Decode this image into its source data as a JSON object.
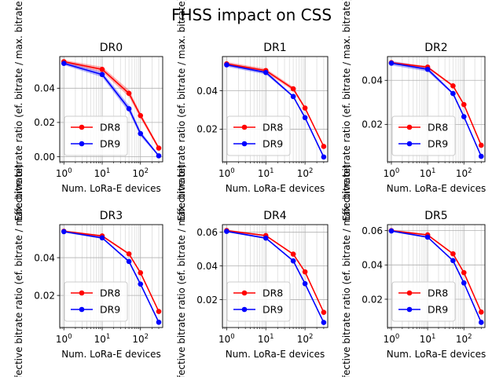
{
  "figure": {
    "title": "FHSS impact on CSS"
  },
  "chart_data": [
    {
      "type": "line",
      "title": "DR0",
      "xlabel": "Num. LoRa-E devices",
      "ylabel": "Effective bitrate ratio (ef. bitrate / max. bitrate)",
      "xscale": "log",
      "xlim": [
        0.78,
        380
      ],
      "ylim": [
        -0.003,
        0.0585
      ],
      "xticks": [
        {
          "v": 1,
          "b": "10",
          "e": "0"
        },
        {
          "v": 10,
          "b": "10",
          "e": "1"
        },
        {
          "v": 100,
          "b": "10",
          "e": "2"
        }
      ],
      "yticks": [
        {
          "v": 0.0,
          "l": "0.00"
        },
        {
          "v": 0.02,
          "l": "0.02"
        },
        {
          "v": 0.04,
          "l": "0.04"
        }
      ],
      "grid": true,
      "legend": "lower-left",
      "x": [
        1,
        10,
        50,
        100,
        300
      ],
      "series": [
        {
          "name": "DR8",
          "color": "#ff0000",
          "values": [
            0.0555,
            0.051,
            0.037,
            0.024,
            0.005
          ],
          "band": [
            [
              0.0545,
              0.0565
            ],
            [
              0.0495,
              0.0525
            ],
            [
              0.035,
              0.039
            ],
            [
              0.0225,
              0.0255
            ],
            [
              0.004,
              0.006
            ]
          ]
        },
        {
          "name": "DR9",
          "color": "#0000ff",
          "values": [
            0.0545,
            0.048,
            0.028,
            0.0135,
            0.0005
          ],
          "band": [
            [
              0.0535,
              0.0555
            ],
            [
              0.0465,
              0.0495
            ],
            [
              0.026,
              0.03
            ],
            [
              0.012,
              0.015
            ],
            [
              0.0,
              0.001
            ]
          ]
        }
      ]
    },
    {
      "type": "line",
      "title": "DR1",
      "xlabel": "Num. LoRa-E devices",
      "ylabel": "Effective bitrate ratio (ef. bitrate / max. bitrate)",
      "xscale": "log",
      "xlim": [
        0.78,
        380
      ],
      "ylim": [
        0.003,
        0.0578
      ],
      "xticks": [
        {
          "v": 1,
          "b": "10",
          "e": "0"
        },
        {
          "v": 10,
          "b": "10",
          "e": "1"
        },
        {
          "v": 100,
          "b": "10",
          "e": "2"
        }
      ],
      "yticks": [
        {
          "v": 0.02,
          "l": "0.02"
        },
        {
          "v": 0.04,
          "l": "0.04"
        }
      ],
      "grid": true,
      "legend": "lower-left",
      "x": [
        1,
        10,
        50,
        100,
        300
      ],
      "series": [
        {
          "name": "DR8",
          "color": "#ff0000",
          "values": [
            0.054,
            0.0505,
            0.041,
            0.031,
            0.011
          ],
          "band": [
            [
              0.053,
              0.055
            ],
            [
              0.0495,
              0.0515
            ],
            [
              0.04,
              0.042
            ],
            [
              0.0305,
              0.0315
            ],
            [
              0.0105,
              0.0115
            ]
          ]
        },
        {
          "name": "DR9",
          "color": "#0000ff",
          "values": [
            0.0535,
            0.0495,
            0.037,
            0.026,
            0.0055
          ],
          "band": [
            [
              0.0525,
              0.0545
            ],
            [
              0.0485,
              0.0505
            ],
            [
              0.0365,
              0.0375
            ],
            [
              0.0255,
              0.0265
            ],
            [
              0.005,
              0.006
            ]
          ]
        }
      ]
    },
    {
      "type": "line",
      "title": "DR2",
      "xlabel": "Num. LoRa-E devices",
      "ylabel": "Effective bitrate ratio (ef. bitrate / max. bitrate)",
      "xscale": "log",
      "xlim": [
        0.78,
        380
      ],
      "ylim": [
        0.003,
        0.0508
      ],
      "xticks": [
        {
          "v": 1,
          "b": "10",
          "e": "0"
        },
        {
          "v": 10,
          "b": "10",
          "e": "1"
        },
        {
          "v": 100,
          "b": "10",
          "e": "2"
        }
      ],
      "yticks": [
        {
          "v": 0.02,
          "l": "0.02"
        },
        {
          "v": 0.04,
          "l": "0.04"
        }
      ],
      "grid": true,
      "legend": "lower-left",
      "x": [
        1,
        10,
        50,
        100,
        300
      ],
      "series": [
        {
          "name": "DR8",
          "color": "#ff0000",
          "values": [
            0.048,
            0.046,
            0.0375,
            0.029,
            0.0105
          ],
          "band": [
            [
              0.0475,
              0.0485
            ],
            [
              0.0455,
              0.0465
            ],
            [
              0.037,
              0.038
            ],
            [
              0.0285,
              0.0295
            ],
            [
              0.01,
              0.011
            ]
          ]
        },
        {
          "name": "DR9",
          "color": "#0000ff",
          "values": [
            0.0478,
            0.045,
            0.034,
            0.0235,
            0.0055
          ],
          "band": [
            [
              0.0468,
              0.0488
            ],
            [
              0.044,
              0.046
            ],
            [
              0.0335,
              0.0345
            ],
            [
              0.023,
              0.024
            ],
            [
              0.005,
              0.006
            ]
          ]
        }
      ]
    },
    {
      "type": "line",
      "title": "DR3",
      "xlabel": "Num. LoRa-E devices",
      "ylabel": "Effective bitrate ratio (ef. bitrate / max. bitrate)",
      "xscale": "log",
      "xlim": [
        0.78,
        380
      ],
      "ylim": [
        0.003,
        0.0575
      ],
      "xticks": [
        {
          "v": 1,
          "b": "10",
          "e": "0"
        },
        {
          "v": 10,
          "b": "10",
          "e": "1"
        },
        {
          "v": 100,
          "b": "10",
          "e": "2"
        }
      ],
      "yticks": [
        {
          "v": 0.02,
          "l": "0.02"
        },
        {
          "v": 0.04,
          "l": "0.04"
        }
      ],
      "grid": true,
      "legend": "lower-left",
      "x": [
        1,
        10,
        50,
        100,
        300
      ],
      "series": [
        {
          "name": "DR8",
          "color": "#ff0000",
          "values": [
            0.054,
            0.0515,
            0.042,
            0.032,
            0.0115
          ],
          "band": [
            [
              0.0535,
              0.0545
            ],
            [
              0.051,
              0.052
            ],
            [
              0.0415,
              0.0425
            ],
            [
              0.0315,
              0.0325
            ],
            [
              0.011,
              0.012
            ]
          ]
        },
        {
          "name": "DR9",
          "color": "#0000ff",
          "values": [
            0.0538,
            0.0505,
            0.038,
            0.026,
            0.0058
          ],
          "band": [
            [
              0.0533,
              0.0543
            ],
            [
              0.05,
              0.051
            ],
            [
              0.0375,
              0.0385
            ],
            [
              0.0255,
              0.0265
            ],
            [
              0.0053,
              0.0063
            ]
          ]
        }
      ]
    },
    {
      "type": "line",
      "title": "DR4",
      "xlabel": "Num. LoRa-E devices",
      "ylabel": "Effective bitrate ratio (ef. bitrate / max. bitrate)",
      "xscale": "log",
      "xlim": [
        0.78,
        380
      ],
      "ylim": [
        0.0035,
        0.0645
      ],
      "xticks": [
        {
          "v": 1,
          "b": "10",
          "e": "0"
        },
        {
          "v": 10,
          "b": "10",
          "e": "1"
        },
        {
          "v": 100,
          "b": "10",
          "e": "2"
        }
      ],
      "yticks": [
        {
          "v": 0.02,
          "l": "0.02"
        },
        {
          "v": 0.04,
          "l": "0.04"
        },
        {
          "v": 0.06,
          "l": "0.06"
        }
      ],
      "grid": true,
      "legend": "lower-left",
      "x": [
        1,
        10,
        50,
        100,
        300
      ],
      "series": [
        {
          "name": "DR8",
          "color": "#ff0000",
          "values": [
            0.061,
            0.058,
            0.047,
            0.0365,
            0.0125
          ],
          "band": [
            [
              0.0605,
              0.0615
            ],
            [
              0.0575,
              0.0585
            ],
            [
              0.0465,
              0.0475
            ],
            [
              0.036,
              0.037
            ],
            [
              0.012,
              0.013
            ]
          ]
        },
        {
          "name": "DR9",
          "color": "#0000ff",
          "values": [
            0.0605,
            0.0565,
            0.043,
            0.0295,
            0.0065
          ],
          "band": [
            [
              0.06,
              0.061
            ],
            [
              0.056,
              0.057
            ],
            [
              0.0425,
              0.0435
            ],
            [
              0.029,
              0.03
            ],
            [
              0.006,
              0.007
            ]
          ]
        }
      ]
    },
    {
      "type": "line",
      "title": "DR5",
      "xlabel": "Num. LoRa-E devices",
      "ylabel": "Effective bitrate ratio (ef. bitrate / max. bitrate)",
      "xscale": "log",
      "xlim": [
        0.78,
        380
      ],
      "ylim": [
        0.0035,
        0.0635
      ],
      "xticks": [
        {
          "v": 1,
          "b": "10",
          "e": "0"
        },
        {
          "v": 10,
          "b": "10",
          "e": "1"
        },
        {
          "v": 100,
          "b": "10",
          "e": "2"
        }
      ],
      "yticks": [
        {
          "v": 0.02,
          "l": "0.02"
        },
        {
          "v": 0.04,
          "l": "0.04"
        },
        {
          "v": 0.06,
          "l": "0.06"
        }
      ],
      "grid": true,
      "legend": "lower-left",
      "x": [
        1,
        10,
        50,
        100,
        300
      ],
      "series": [
        {
          "name": "DR8",
          "color": "#ff0000",
          "values": [
            0.06,
            0.0575,
            0.0465,
            0.0355,
            0.0125
          ],
          "band": [
            [
              0.0595,
              0.0605
            ],
            [
              0.057,
              0.058
            ],
            [
              0.046,
              0.047
            ],
            [
              0.035,
              0.036
            ],
            [
              0.012,
              0.013
            ]
          ]
        },
        {
          "name": "DR9",
          "color": "#0000ff",
          "values": [
            0.0598,
            0.0562,
            0.0425,
            0.0295,
            0.0065
          ],
          "band": [
            [
              0.0593,
              0.0603
            ],
            [
              0.0557,
              0.0567
            ],
            [
              0.042,
              0.043
            ],
            [
              0.029,
              0.03
            ],
            [
              0.006,
              0.007
            ]
          ]
        }
      ]
    }
  ]
}
